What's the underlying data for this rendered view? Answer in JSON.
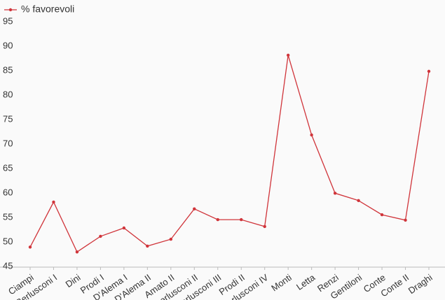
{
  "chart_data": {
    "type": "line",
    "categories": [
      "Ciampi",
      "Berlusconi I",
      "Dini",
      "Prodi I",
      "D'Alema I",
      "D'Alema II",
      "Amato II",
      "Berlusconi II",
      "Berlusconi III",
      "Prodi II",
      "Berlusconi IV",
      "Monti",
      "Letta",
      "Renzi",
      "Gentiloni",
      "Conte",
      "Conte II",
      "Draghi"
    ],
    "series": [
      {
        "name": "% favorevoli",
        "color": "#d0343a",
        "values": [
          49.1,
          58.3,
          48.1,
          51.3,
          53,
          49.3,
          50.7,
          56.9,
          54.7,
          54.7,
          53.3,
          88.3,
          72,
          60.1,
          58.6,
          55.7,
          54.6,
          85
        ]
      }
    ],
    "ylim": [
      45,
      95
    ],
    "yticks": [
      45,
      50,
      55,
      60,
      65,
      70,
      75,
      80,
      85,
      90,
      95
    ],
    "grid": false,
    "legend": "top-left"
  }
}
